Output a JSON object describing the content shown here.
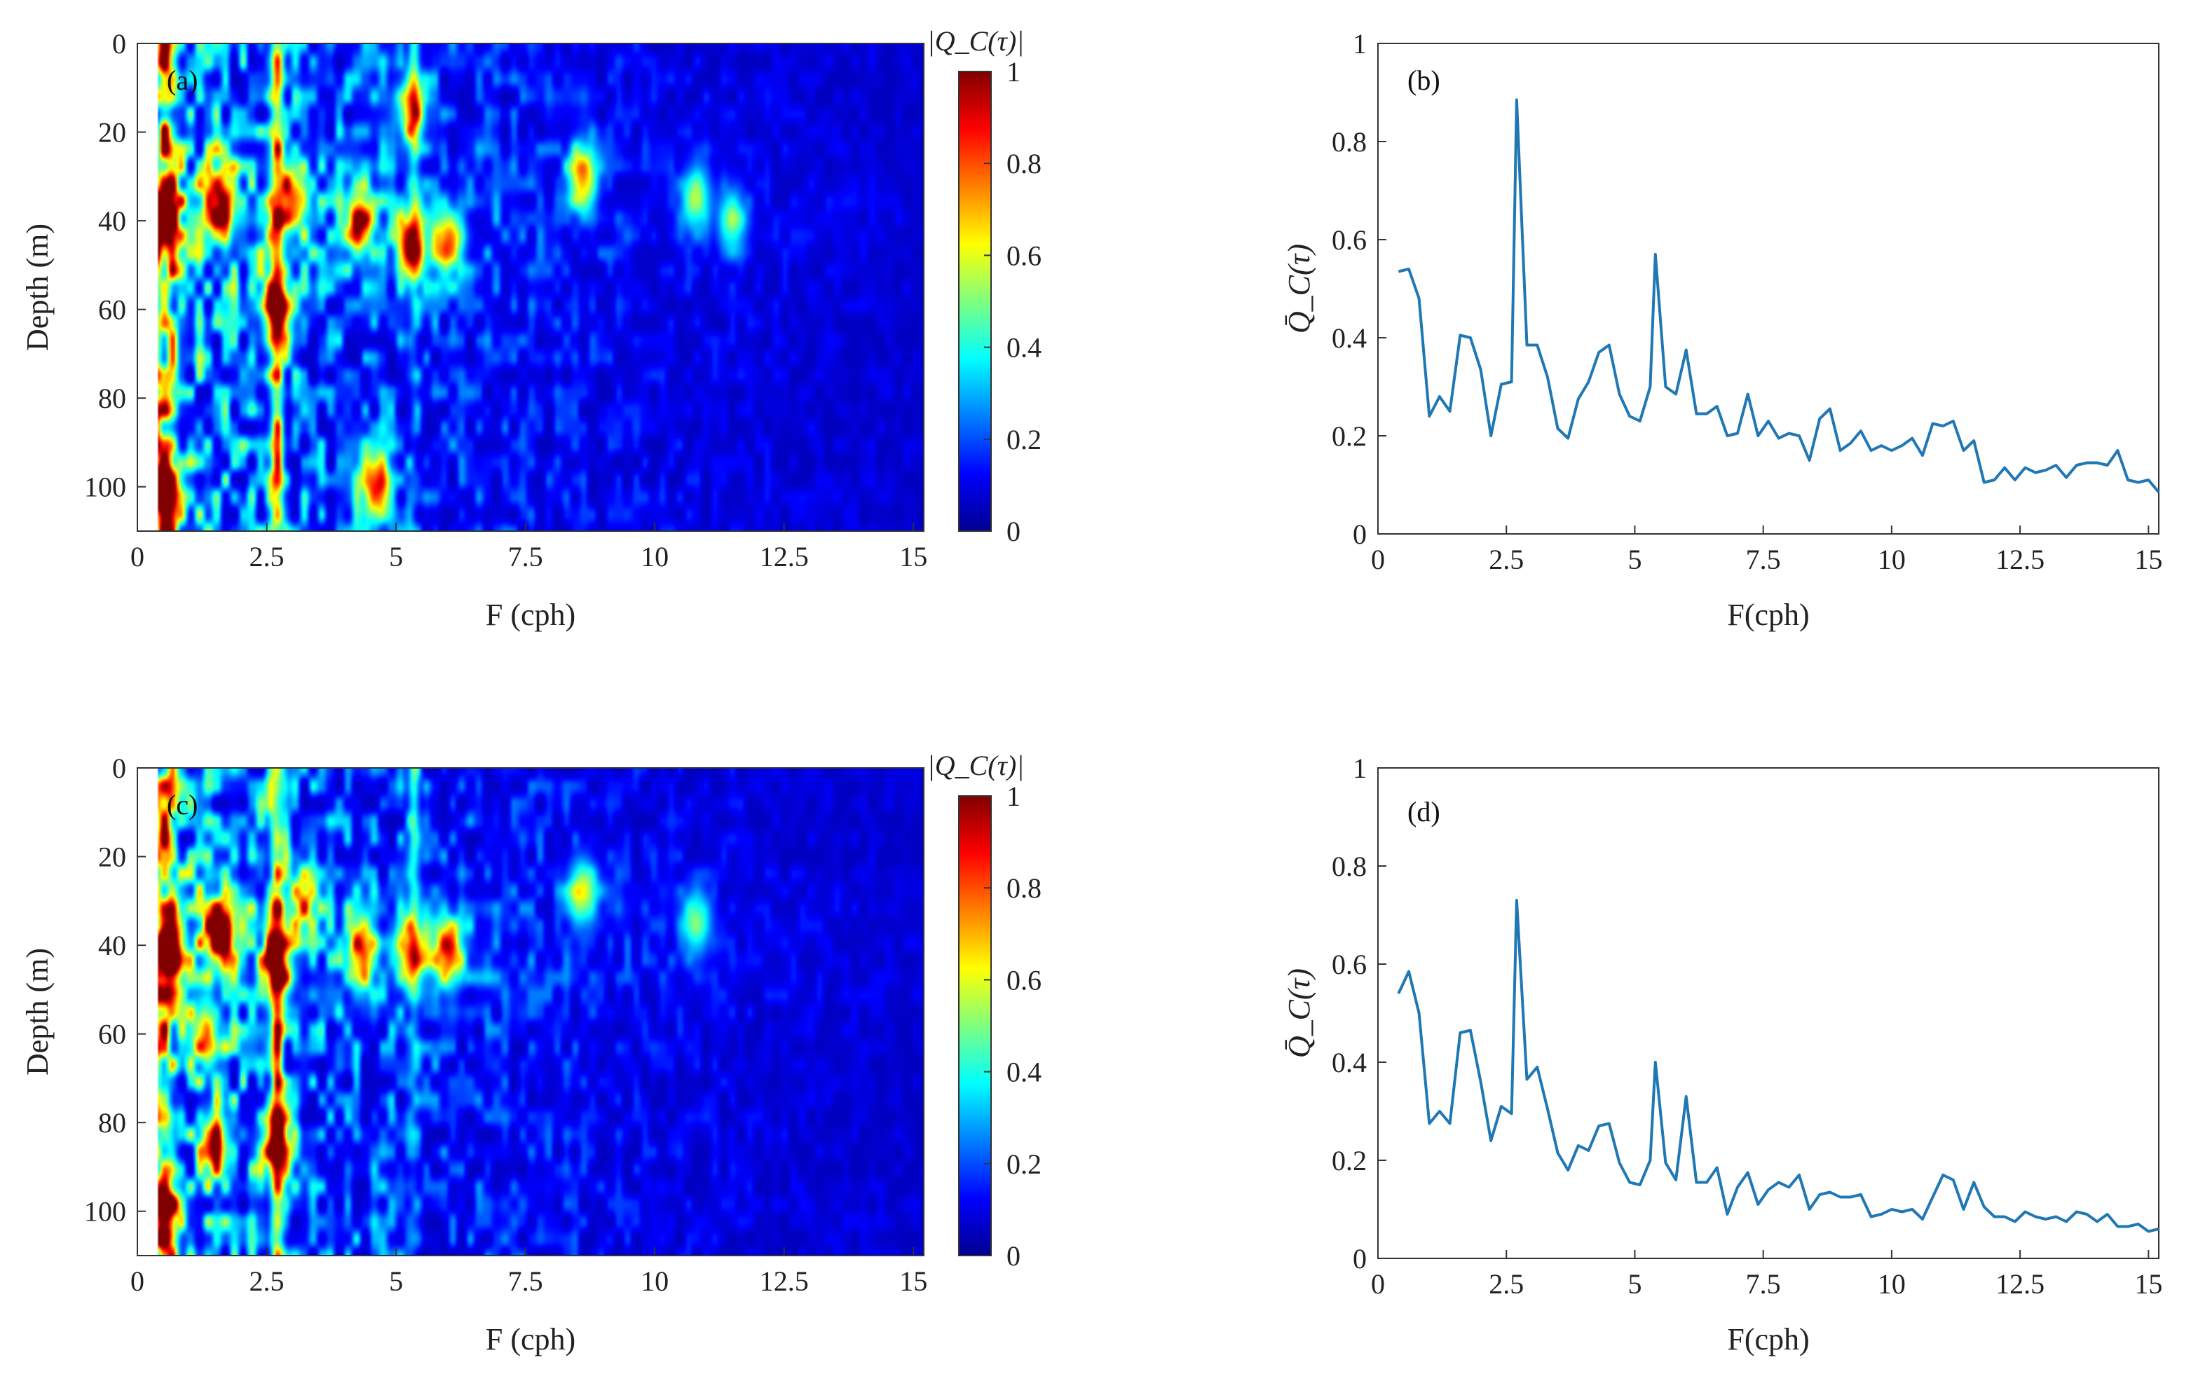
{
  "chart_data": [
    {
      "type": "heatmap",
      "panel_label": "(a)",
      "xlabel": "F (cph)",
      "ylabel": "Depth (m)",
      "xlim": [
        0,
        15.2
      ],
      "ylim": [
        0,
        110
      ],
      "y_reversed": true,
      "x_ticks": [
        "0",
        "2.5",
        "5",
        "7.5",
        "10",
        "12.5",
        "15"
      ],
      "y_ticks": [
        "0",
        "20",
        "40",
        "60",
        "80",
        "100"
      ],
      "colorbar_title": "|Q_C(τ)|",
      "colorbar_ticks": [
        "0",
        "0.2",
        "0.4",
        "0.6",
        "0.8",
        "1"
      ],
      "colorbar_range": [
        0,
        1
      ],
      "colormap": "jet",
      "hotspots": [
        {
          "f": 0.5,
          "depth": 40,
          "value": 0.9
        },
        {
          "f": 0.5,
          "depth": 100,
          "value": 0.95
        },
        {
          "f": 1.6,
          "depth": 35,
          "value": 0.9
        },
        {
          "f": 2.7,
          "depth": 60,
          "value": 0.95
        },
        {
          "f": 3.0,
          "depth": 35,
          "value": 0.8
        },
        {
          "f": 4.3,
          "depth": 40,
          "value": 0.8
        },
        {
          "f": 4.6,
          "depth": 100,
          "value": 0.85
        },
        {
          "f": 5.3,
          "depth": 45,
          "value": 0.9
        },
        {
          "f": 5.3,
          "depth": 15,
          "value": 0.7
        },
        {
          "f": 6.0,
          "depth": 45,
          "value": 0.7
        },
        {
          "f": 8.6,
          "depth": 30,
          "value": 0.75
        },
        {
          "f": 10.8,
          "depth": 35,
          "value": 0.5
        },
        {
          "f": 11.5,
          "depth": 40,
          "value": 0.45
        }
      ]
    },
    {
      "type": "line",
      "panel_label": "(b)",
      "xlabel": "F(cph)",
      "ylabel": "Q̄_C(τ)",
      "xlim": [
        0,
        15.2
      ],
      "ylim": [
        0,
        1
      ],
      "x_ticks": [
        "0",
        "2.5",
        "5",
        "7.5",
        "10",
        "12.5",
        "15"
      ],
      "y_ticks": [
        "0",
        "0.2",
        "0.4",
        "0.6",
        "0.8",
        "1"
      ],
      "x": [
        0.4,
        0.6,
        0.8,
        1.0,
        1.2,
        1.4,
        1.6,
        1.8,
        2.0,
        2.2,
        2.4,
        2.6,
        2.7,
        2.9,
        3.1,
        3.3,
        3.5,
        3.7,
        3.9,
        4.1,
        4.3,
        4.5,
        4.7,
        4.9,
        5.1,
        5.3,
        5.4,
        5.6,
        5.8,
        6.0,
        6.2,
        6.4,
        6.6,
        6.8,
        7.0,
        7.2,
        7.4,
        7.6,
        7.8,
        8.0,
        8.2,
        8.4,
        8.6,
        8.8,
        9.0,
        9.2,
        9.4,
        9.6,
        9.8,
        10.0,
        10.2,
        10.4,
        10.6,
        10.8,
        11.0,
        11.2,
        11.4,
        11.6,
        11.8,
        12.0,
        12.2,
        12.4,
        12.6,
        12.8,
        13.0,
        13.2,
        13.4,
        13.6,
        13.8,
        14.0,
        14.2,
        14.4,
        14.6,
        14.8,
        15.0,
        15.2
      ],
      "series": [
        {
          "name": "mean Q_C",
          "color": "#1f77b4",
          "values": [
            0.535,
            0.54,
            0.48,
            0.24,
            0.28,
            0.25,
            0.405,
            0.4,
            0.335,
            0.2,
            0.305,
            0.31,
            0.885,
            0.385,
            0.385,
            0.32,
            0.215,
            0.195,
            0.275,
            0.31,
            0.37,
            0.385,
            0.285,
            0.24,
            0.23,
            0.3,
            0.57,
            0.3,
            0.285,
            0.375,
            0.245,
            0.245,
            0.26,
            0.2,
            0.205,
            0.285,
            0.2,
            0.23,
            0.195,
            0.205,
            0.2,
            0.15,
            0.235,
            0.255,
            0.17,
            0.185,
            0.21,
            0.17,
            0.18,
            0.17,
            0.18,
            0.195,
            0.16,
            0.225,
            0.22,
            0.23,
            0.17,
            0.19,
            0.105,
            0.11,
            0.135,
            0.11,
            0.135,
            0.125,
            0.13,
            0.14,
            0.115,
            0.14,
            0.145,
            0.145,
            0.14,
            0.17,
            0.11,
            0.105,
            0.11,
            0.085
          ]
        }
      ]
    },
    {
      "type": "heatmap",
      "panel_label": "(c)",
      "xlabel": "F (cph)",
      "ylabel": "Depth (m)",
      "xlim": [
        0,
        15.2
      ],
      "ylim": [
        0,
        110
      ],
      "y_reversed": true,
      "x_ticks": [
        "0",
        "2.5",
        "5",
        "7.5",
        "10",
        "12.5",
        "15"
      ],
      "y_ticks": [
        "0",
        "20",
        "40",
        "60",
        "80",
        "100"
      ],
      "colorbar_title": "|Q_C(τ)|",
      "colorbar_ticks": [
        "0",
        "0.2",
        "0.4",
        "0.6",
        "0.8",
        "1"
      ],
      "colorbar_range": [
        0,
        1
      ],
      "colormap": "jet",
      "hotspots": [
        {
          "f": 0.6,
          "depth": 42,
          "value": 0.95
        },
        {
          "f": 0.5,
          "depth": 100,
          "value": 0.95
        },
        {
          "f": 1.3,
          "depth": 60,
          "value": 0.7
        },
        {
          "f": 1.6,
          "depth": 38,
          "value": 0.95
        },
        {
          "f": 1.5,
          "depth": 85,
          "value": 0.8
        },
        {
          "f": 2.7,
          "depth": 45,
          "value": 0.85
        },
        {
          "f": 2.7,
          "depth": 85,
          "value": 0.9
        },
        {
          "f": 3.2,
          "depth": 30,
          "value": 0.6
        },
        {
          "f": 4.3,
          "depth": 42,
          "value": 0.7
        },
        {
          "f": 5.3,
          "depth": 42,
          "value": 0.75
        },
        {
          "f": 6.0,
          "depth": 42,
          "value": 0.8
        },
        {
          "f": 8.6,
          "depth": 28,
          "value": 0.6
        },
        {
          "f": 10.8,
          "depth": 35,
          "value": 0.45
        }
      ]
    },
    {
      "type": "line",
      "panel_label": "(d)",
      "xlabel": "F(cph)",
      "ylabel": "Q̄_C(τ)",
      "xlim": [
        0,
        15.2
      ],
      "ylim": [
        0,
        1
      ],
      "x_ticks": [
        "0",
        "2.5",
        "5",
        "7.5",
        "10",
        "12.5",
        "15"
      ],
      "y_ticks": [
        "0",
        "0.2",
        "0.4",
        "0.6",
        "0.8",
        "1"
      ],
      "x": [
        0.4,
        0.6,
        0.8,
        1.0,
        1.2,
        1.4,
        1.6,
        1.8,
        2.0,
        2.2,
        2.4,
        2.6,
        2.7,
        2.9,
        3.1,
        3.3,
        3.5,
        3.7,
        3.9,
        4.1,
        4.3,
        4.5,
        4.7,
        4.9,
        5.1,
        5.3,
        5.4,
        5.6,
        5.8,
        6.0,
        6.2,
        6.4,
        6.6,
        6.8,
        7.0,
        7.2,
        7.4,
        7.6,
        7.8,
        8.0,
        8.2,
        8.4,
        8.6,
        8.8,
        9.0,
        9.2,
        9.4,
        9.6,
        9.8,
        10.0,
        10.2,
        10.4,
        10.6,
        10.8,
        11.0,
        11.2,
        11.4,
        11.6,
        11.8,
        12.0,
        12.2,
        12.4,
        12.6,
        12.8,
        13.0,
        13.2,
        13.4,
        13.6,
        13.8,
        14.0,
        14.2,
        14.4,
        14.6,
        14.8,
        15.0,
        15.2
      ],
      "series": [
        {
          "name": "mean Q_C",
          "color": "#1f77b4",
          "values": [
            0.54,
            0.585,
            0.5,
            0.275,
            0.3,
            0.275,
            0.46,
            0.465,
            0.36,
            0.24,
            0.31,
            0.295,
            0.73,
            0.365,
            0.39,
            0.305,
            0.215,
            0.18,
            0.23,
            0.22,
            0.27,
            0.275,
            0.195,
            0.155,
            0.15,
            0.2,
            0.4,
            0.195,
            0.16,
            0.33,
            0.155,
            0.155,
            0.185,
            0.09,
            0.145,
            0.175,
            0.11,
            0.14,
            0.155,
            0.145,
            0.17,
            0.1,
            0.13,
            0.135,
            0.125,
            0.125,
            0.13,
            0.085,
            0.09,
            0.1,
            0.095,
            0.1,
            0.08,
            0.125,
            0.17,
            0.16,
            0.1,
            0.155,
            0.105,
            0.085,
            0.085,
            0.075,
            0.095,
            0.085,
            0.08,
            0.085,
            0.075,
            0.095,
            0.09,
            0.075,
            0.09,
            0.065,
            0.065,
            0.07,
            0.055,
            0.06
          ]
        }
      ]
    }
  ]
}
